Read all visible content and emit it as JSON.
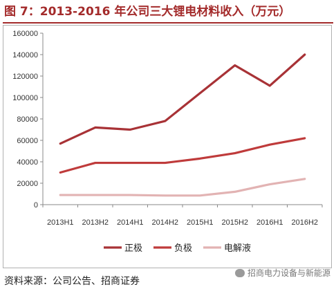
{
  "figure": {
    "title": "图 7：2013-2016 年公司三大锂电材料收入（万元）",
    "source": "资料来源：公司公告、招商证券",
    "watermark": "招商电力设备与新能源",
    "watermark_icon": "wechat-icon"
  },
  "chart_data": {
    "type": "line",
    "categories": [
      "2013H1",
      "2013H2",
      "2014H1",
      "2014H2",
      "2015H1",
      "2015H2",
      "2016H1",
      "2016H2"
    ],
    "series": [
      {
        "name": "正极",
        "values": [
          57000,
          72000,
          70000,
          78000,
          104000,
          130000,
          111000,
          140000
        ],
        "color": "#a83236"
      },
      {
        "name": "负极",
        "values": [
          30000,
          39000,
          39000,
          39000,
          43000,
          48000,
          56000,
          62000
        ],
        "color": "#bf3b3b"
      },
      {
        "name": "电解液",
        "values": [
          9000,
          9000,
          9000,
          8500,
          8500,
          12000,
          19000,
          24000
        ],
        "color": "#e2b3b3"
      }
    ],
    "ylim": [
      0,
      160000
    ],
    "yticks": [
      0,
      20000,
      40000,
      60000,
      80000,
      100000,
      120000,
      140000,
      160000
    ],
    "grid": false,
    "legend_position": "bottom"
  }
}
